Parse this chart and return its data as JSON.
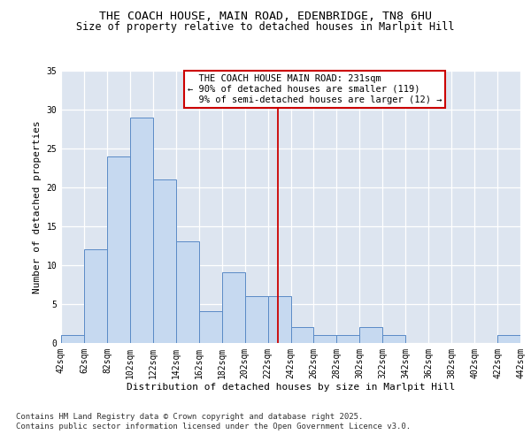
{
  "title_line1": "THE COACH HOUSE, MAIN ROAD, EDENBRIDGE, TN8 6HU",
  "title_line2": "Size of property relative to detached houses in Marlpit Hill",
  "xlabel": "Distribution of detached houses by size in Marlpit Hill",
  "ylabel": "Number of detached properties",
  "footnote": "Contains HM Land Registry data © Crown copyright and database right 2025.\nContains public sector information licensed under the Open Government Licence v3.0.",
  "bar_values": [
    1,
    12,
    24,
    29,
    21,
    13,
    4,
    9,
    6,
    6,
    2,
    1,
    1,
    2,
    1,
    0,
    0,
    0,
    0,
    1
  ],
  "bin_labels": [
    "42sqm",
    "62sqm",
    "82sqm",
    "102sqm",
    "122sqm",
    "142sqm",
    "162sqm",
    "182sqm",
    "202sqm",
    "222sqm",
    "242sqm",
    "262sqm",
    "282sqm",
    "302sqm",
    "322sqm",
    "342sqm",
    "362sqm",
    "382sqm",
    "402sqm",
    "422sqm",
    "442sqm"
  ],
  "bar_color": "#c6d9f0",
  "bar_edge_color": "#5a8ac6",
  "vline_x": 231,
  "vline_color": "#cc0000",
  "annotation_text": "  THE COACH HOUSE MAIN ROAD: 231sqm\n← 90% of detached houses are smaller (119)\n  9% of semi-detached houses are larger (12) →",
  "annotation_box_color": "#cc0000",
  "ylim": [
    0,
    35
  ],
  "yticks": [
    0,
    5,
    10,
    15,
    20,
    25,
    30,
    35
  ],
  "background_color": "#dde5f0",
  "title_fontsize": 9.5,
  "subtitle_fontsize": 8.5,
  "axis_label_fontsize": 8,
  "tick_fontsize": 7,
  "footnote_fontsize": 6.5,
  "annotation_fontsize": 7.5
}
